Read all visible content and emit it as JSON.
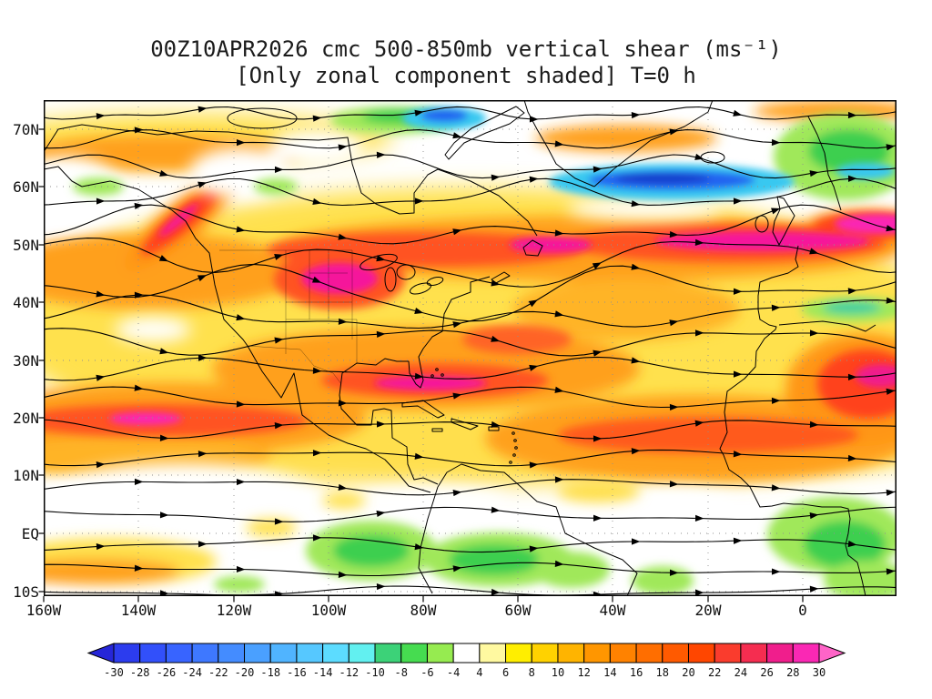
{
  "title": {
    "line1": "00Z10APR2026 cmc 500-850mb vertical shear (ms⁻¹)",
    "line2": "[Only zonal component shaded] T=0 h"
  },
  "map": {
    "lat_labels": [
      "70N",
      "60N",
      "50N",
      "40N",
      "30N",
      "20N",
      "10N",
      "EQ",
      "10S"
    ],
    "lon_labels": [
      "160W",
      "140W",
      "120W",
      "100W",
      "80W",
      "60W",
      "40W",
      "20W",
      "0"
    ]
  },
  "colorbar": {
    "tick_labels": [
      "-30",
      "-28",
      "-26",
      "-24",
      "-22",
      "-20",
      "-18",
      "-16",
      "-14",
      "-12",
      "-10",
      "-8",
      "-6",
      "-4",
      "4",
      "6",
      "8",
      "10",
      "12",
      "14",
      "16",
      "18",
      "20",
      "22",
      "24",
      "26",
      "28",
      "30"
    ],
    "colors": [
      "#2626d8",
      "#2c3cee",
      "#3250fa",
      "#3864ff",
      "#3e78ff",
      "#448cff",
      "#4aa0ff",
      "#50b4ff",
      "#56c8ff",
      "#5cdcff",
      "#62f0f0",
      "#3cd278",
      "#46dc50",
      "#96eb50",
      "#ffffff",
      "#fff9a0",
      "#ffee00",
      "#ffd200",
      "#ffb400",
      "#ff9600",
      "#ff8200",
      "#ff6e00",
      "#ff5a00",
      "#ff4600",
      "#fa3c2d",
      "#f52d50",
      "#f01e8c",
      "#fa28b4",
      "#ff64c8"
    ]
  },
  "chart_data": {
    "type": "heatmap",
    "title": "00Z10APR2026 cmc 500-850mb vertical shear (ms⁻¹)",
    "subtitle": "[Only zonal component shaded] T=0 h",
    "model": "cmc",
    "init_time": "00Z10APR2026",
    "forecast_hour": "T=0 h",
    "field": "500-850mb vertical shear, zonal component shaded",
    "units": "ms⁻¹",
    "x_ticks": [
      "160W",
      "140W",
      "120W",
      "100W",
      "80W",
      "60W",
      "40W",
      "20W",
      "0"
    ],
    "y_ticks": [
      "70N",
      "60N",
      "50N",
      "40N",
      "30N",
      "20N",
      "10N",
      "EQ",
      "10S"
    ],
    "overlay": "streamlines with arrowheads, coastlines, dotted lat/lon grid",
    "colorbar_levels": [
      -30,
      -28,
      -26,
      -24,
      -22,
      -20,
      -18,
      -16,
      -14,
      -12,
      -10,
      -8,
      -6,
      -4,
      4,
      6,
      8,
      10,
      12,
      14,
      16,
      18,
      20,
      22,
      24,
      26,
      28,
      30
    ],
    "colorbar_colors": [
      "#2626d8",
      "#2c3cee",
      "#3250fa",
      "#3864ff",
      "#3e78ff",
      "#448cff",
      "#4aa0ff",
      "#50b4ff",
      "#56c8ff",
      "#5cdcff",
      "#62f0f0",
      "#3cd278",
      "#46dc50",
      "#96eb50",
      "#ffffff",
      "#fff9a0",
      "#ffee00",
      "#ffd200",
      "#ffb400",
      "#ff9600",
      "#ff8200",
      "#ff6e00",
      "#ff5a00",
      "#ff4600",
      "#fa3c2d",
      "#f52d50",
      "#f01e8c",
      "#fa28b4",
      "#ff64c8"
    ],
    "sampled_values_approx": {
      "note": "eyeball estimates from shading at grid intersections",
      "lats": [
        "70N",
        "60N",
        "50N",
        "40N",
        "30N",
        "20N",
        "10N",
        "EQ",
        "10S"
      ],
      "lons": [
        "160W",
        "140W",
        "120W",
        "100W",
        "80W",
        "60W",
        "40W",
        "20W",
        "0"
      ],
      "values": [
        [
          10,
          20,
          16,
          18,
          -12,
          4,
          12,
          8,
          -6
        ],
        [
          0,
          14,
          22,
          10,
          8,
          12,
          -18,
          -26,
          -8
        ],
        [
          12,
          6,
          18,
          26,
          14,
          22,
          28,
          30,
          26
        ],
        [
          6,
          10,
          8,
          28,
          18,
          10,
          16,
          20,
          -10
        ],
        [
          16,
          20,
          10,
          14,
          22,
          12,
          14,
          18,
          20
        ],
        [
          24,
          26,
          18,
          8,
          16,
          20,
          18,
          16,
          18
        ],
        [
          10,
          12,
          14,
          6,
          6,
          14,
          16,
          12,
          8
        ],
        [
          4,
          6,
          -6,
          -8,
          -10,
          6,
          8,
          6,
          -6
        ],
        [
          6,
          -4,
          6,
          -10,
          -12,
          -8,
          4,
          -6,
          -10
        ]
      ]
    }
  }
}
